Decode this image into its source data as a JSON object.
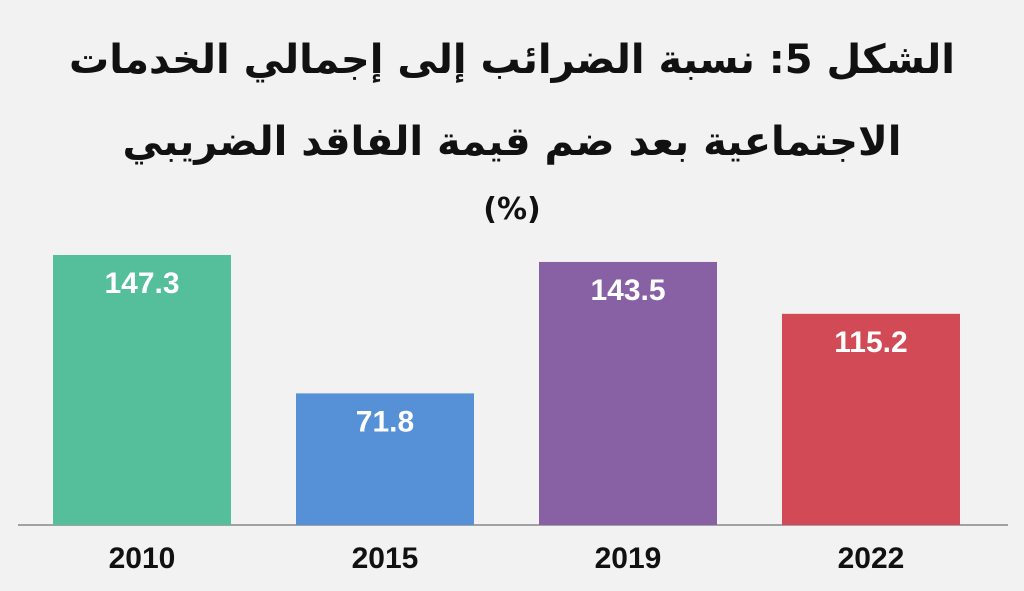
{
  "title_line1": "الشكل 5: نسبة الضرائب إلى إجمالي الخدمات",
  "title_line2": "الاجتماعية بعد ضم قيمة الفاقد الضريبي",
  "title_unit": "(%)",
  "chart_data": {
    "type": "bar",
    "title": "الشكل 5: نسبة الضرائب إلى إجمالي الخدمات الاجتماعية بعد ضم قيمة الفاقد الضريبي",
    "subtitle": "(%)",
    "categories": [
      "2010",
      "2015",
      "2019",
      "2022"
    ],
    "values": [
      147.3,
      71.8,
      143.5,
      115.2
    ],
    "value_labels": [
      "147.3",
      "71.8",
      "143.5",
      "115.2"
    ],
    "colors": [
      "#55be9a",
      "#5690d6",
      "#8860a4",
      "#d14a55"
    ],
    "axis_color": "#888888",
    "xlabel": "",
    "ylabel": "",
    "ylim": [
      0,
      147.3
    ],
    "grid": false,
    "legend": "none",
    "data_labels": "inside-top"
  }
}
